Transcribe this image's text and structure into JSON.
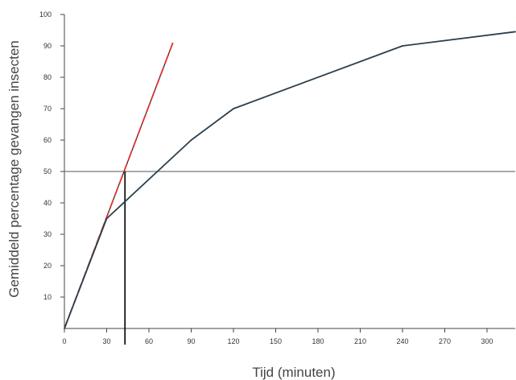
{
  "chart_data": {
    "type": "line",
    "title": "",
    "xlabel": "Tijd (minuten)",
    "ylabel": "Gemiddeld percentage gevangen insecten",
    "xlim": [
      0,
      320
    ],
    "ylim": [
      0,
      100
    ],
    "x_ticks": [
      0,
      30,
      60,
      90,
      120,
      150,
      180,
      210,
      240,
      270,
      300
    ],
    "y_ticks": [
      10,
      20,
      30,
      40,
      50,
      60,
      70,
      80,
      90,
      100
    ],
    "grid": false,
    "series": [
      {
        "x": [
          0,
          30,
          90,
          120,
          240,
          320
        ],
        "y": [
          0,
          35,
          60,
          70,
          90,
          94.5
        ],
        "color": "#2b3e4c"
      },
      {
        "x": [
          0,
          77
        ],
        "y": [
          0,
          91
        ],
        "color": "#e03030",
        "dashed": true
      }
    ],
    "reference_lines": {
      "horizontal_y": 50,
      "vertical_x": 43,
      "color_horizontal": "#777777",
      "color_vertical": "#111111"
    }
  }
}
